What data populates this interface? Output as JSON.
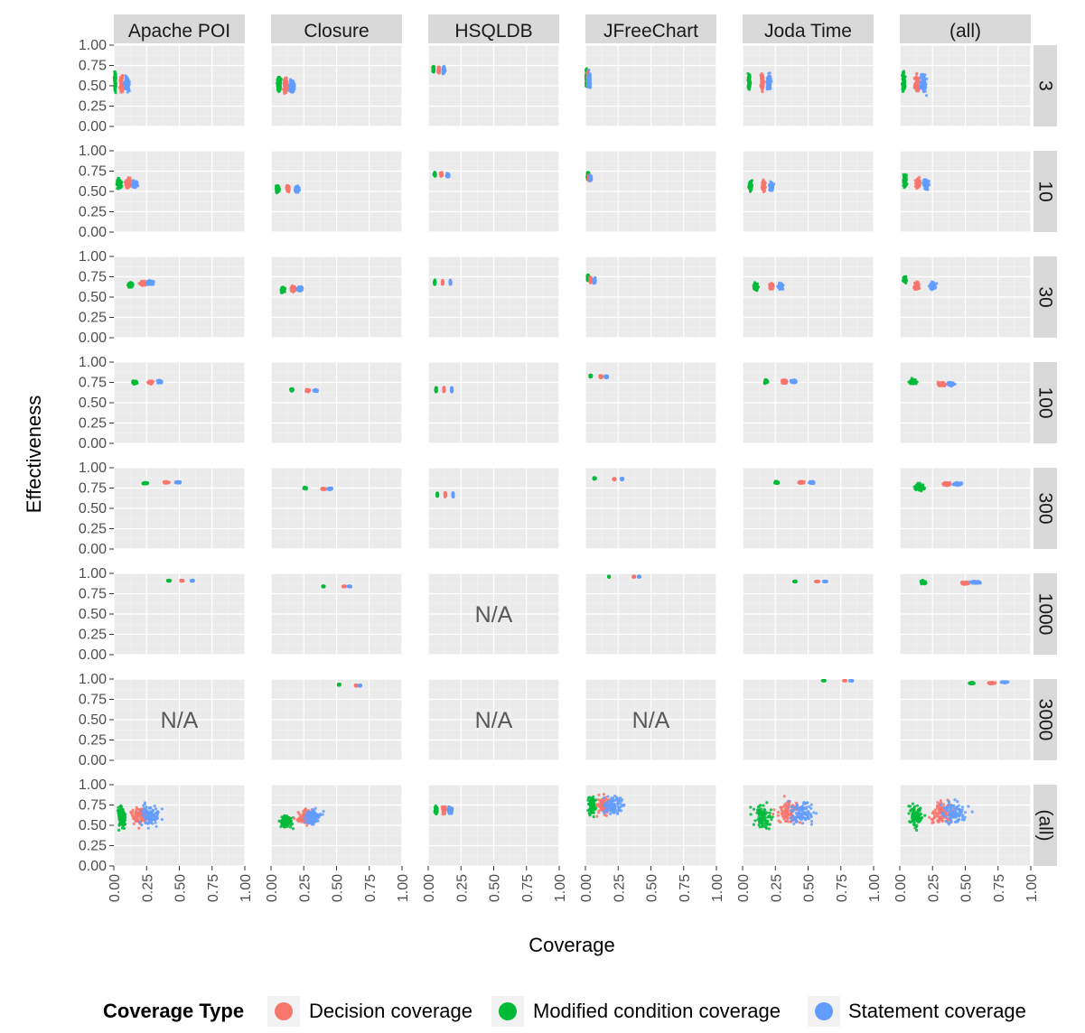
{
  "chart_data": {
    "type": "scatter",
    "layout": "faceted-grid",
    "xlabel": "Coverage",
    "ylabel": "Effectiveness",
    "xlim": [
      0,
      1
    ],
    "ylim": [
      0,
      1
    ],
    "x_ticks": [
      "0.00",
      "0.25",
      "0.50",
      "0.75",
      "1.00"
    ],
    "y_ticks": [
      "0.00",
      "0.25",
      "0.50",
      "0.75",
      "1.00"
    ],
    "x_tick_values": [
      0,
      0.25,
      0.5,
      0.75,
      1
    ],
    "y_tick_values": [
      0,
      0.25,
      0.5,
      0.75,
      1
    ],
    "grid": true,
    "columns": [
      "Apache POI",
      "Closure",
      "HSQLDB",
      "JFreeChart",
      "Joda Time",
      "(all)"
    ],
    "rows": [
      "3",
      "10",
      "30",
      "100",
      "300",
      "1000",
      "3000",
      "(all)"
    ],
    "na_label": "N/A",
    "na_cells": [
      [
        5,
        2
      ],
      [
        6,
        0
      ],
      [
        6,
        2
      ],
      [
        6,
        3
      ]
    ],
    "legend": {
      "title": "Coverage Type",
      "position": "bottom",
      "entries": [
        {
          "name": "Decision coverage",
          "color": "#F8766D"
        },
        {
          "name": "Modified condition coverage",
          "color": "#00BA38"
        },
        {
          "name": "Statement coverage",
          "color": "#619CFF"
        }
      ]
    },
    "series_order": [
      "Modified condition coverage",
      "Decision coverage",
      "Statement coverage"
    ],
    "note": "Each cluster: [x_center, x_spread, y_center, y_spread] in data units; series order = Modified condition, Decision, Statement.",
    "clusters": {
      "0": {
        "0": [
          [
            0.01,
            0.02,
            0.55,
            0.37
          ],
          [
            0.06,
            0.04,
            0.52,
            0.3
          ],
          [
            0.1,
            0.06,
            0.52,
            0.28
          ]
        ],
        "1": [
          [
            0.06,
            0.05,
            0.51,
            0.31
          ],
          [
            0.11,
            0.05,
            0.51,
            0.31
          ],
          [
            0.16,
            0.06,
            0.5,
            0.3
          ]
        ],
        "2": [
          [
            0.04,
            0.02,
            0.7,
            0.14
          ],
          [
            0.08,
            0.02,
            0.7,
            0.12
          ],
          [
            0.12,
            0.03,
            0.69,
            0.12
          ]
        ],
        "3": [
          [
            0.01,
            0.02,
            0.6,
            0.36
          ],
          [
            0.02,
            0.02,
            0.58,
            0.32
          ],
          [
            0.03,
            0.03,
            0.57,
            0.3
          ]
        ],
        "4": [
          [
            0.05,
            0.03,
            0.55,
            0.35
          ],
          [
            0.15,
            0.04,
            0.55,
            0.34
          ],
          [
            0.2,
            0.05,
            0.55,
            0.34
          ]
        ],
        "5": [
          [
            0.03,
            0.04,
            0.55,
            0.38
          ],
          [
            0.13,
            0.06,
            0.53,
            0.34
          ],
          [
            0.18,
            0.07,
            0.53,
            0.34
          ]
        ]
      },
      "1": {
        "0": [
          [
            0.04,
            0.05,
            0.6,
            0.2
          ],
          [
            0.11,
            0.06,
            0.6,
            0.18
          ],
          [
            0.16,
            0.07,
            0.59,
            0.17
          ]
        ],
        "1": [
          [
            0.05,
            0.04,
            0.53,
            0.13
          ],
          [
            0.13,
            0.04,
            0.54,
            0.12
          ],
          [
            0.2,
            0.05,
            0.53,
            0.12
          ]
        ],
        "2": [
          [
            0.05,
            0.02,
            0.71,
            0.07
          ],
          [
            0.1,
            0.02,
            0.71,
            0.07
          ],
          [
            0.15,
            0.03,
            0.7,
            0.07
          ]
        ],
        "3": [
          [
            0.02,
            0.02,
            0.69,
            0.16
          ],
          [
            0.03,
            0.02,
            0.67,
            0.12
          ],
          [
            0.04,
            0.02,
            0.66,
            0.1
          ]
        ],
        "4": [
          [
            0.06,
            0.04,
            0.57,
            0.2
          ],
          [
            0.16,
            0.04,
            0.57,
            0.2
          ],
          [
            0.22,
            0.05,
            0.56,
            0.18
          ]
        ],
        "5": [
          [
            0.04,
            0.04,
            0.63,
            0.24
          ],
          [
            0.14,
            0.06,
            0.6,
            0.2
          ],
          [
            0.2,
            0.07,
            0.59,
            0.2
          ]
        ]
      },
      "2": {
        "0": [
          [
            0.13,
            0.06,
            0.65,
            0.1
          ],
          [
            0.22,
            0.07,
            0.67,
            0.09
          ],
          [
            0.28,
            0.08,
            0.68,
            0.08
          ]
        ],
        "1": [
          [
            0.09,
            0.05,
            0.59,
            0.1
          ],
          [
            0.17,
            0.06,
            0.6,
            0.1
          ],
          [
            0.22,
            0.07,
            0.6,
            0.09
          ]
        ],
        "2": [
          [
            0.05,
            0.01,
            0.68,
            0.08
          ],
          [
            0.11,
            0.01,
            0.68,
            0.08
          ],
          [
            0.17,
            0.01,
            0.68,
            0.08
          ]
        ],
        "3": [
          [
            0.02,
            0.02,
            0.74,
            0.12
          ],
          [
            0.04,
            0.02,
            0.71,
            0.1
          ],
          [
            0.07,
            0.02,
            0.7,
            0.09
          ]
        ],
        "4": [
          [
            0.1,
            0.05,
            0.63,
            0.13
          ],
          [
            0.22,
            0.06,
            0.63,
            0.12
          ],
          [
            0.29,
            0.06,
            0.63,
            0.12
          ]
        ],
        "5": [
          [
            0.04,
            0.04,
            0.72,
            0.14
          ],
          [
            0.13,
            0.06,
            0.64,
            0.14
          ],
          [
            0.25,
            0.08,
            0.64,
            0.14
          ]
        ]
      },
      "3": {
        "0": [
          [
            0.16,
            0.05,
            0.75,
            0.06
          ],
          [
            0.28,
            0.06,
            0.75,
            0.06
          ],
          [
            0.35,
            0.06,
            0.76,
            0.05
          ]
        ],
        "1": [
          [
            0.16,
            0.03,
            0.66,
            0.05
          ],
          [
            0.28,
            0.04,
            0.65,
            0.04
          ],
          [
            0.34,
            0.04,
            0.65,
            0.04
          ]
        ],
        "2": [
          [
            0.06,
            0.01,
            0.66,
            0.08
          ],
          [
            0.12,
            0.01,
            0.66,
            0.08
          ],
          [
            0.18,
            0.01,
            0.66,
            0.08
          ]
        ],
        "3": [
          [
            0.04,
            0.02,
            0.83,
            0.04
          ],
          [
            0.12,
            0.03,
            0.82,
            0.04
          ],
          [
            0.16,
            0.03,
            0.82,
            0.04
          ]
        ],
        "4": [
          [
            0.18,
            0.04,
            0.76,
            0.07
          ],
          [
            0.32,
            0.06,
            0.76,
            0.07
          ],
          [
            0.39,
            0.06,
            0.76,
            0.06
          ]
        ],
        "5": [
          [
            0.1,
            0.08,
            0.76,
            0.1
          ],
          [
            0.32,
            0.1,
            0.73,
            0.08
          ],
          [
            0.39,
            0.08,
            0.73,
            0.07
          ]
        ]
      },
      "4": {
        "0": [
          [
            0.24,
            0.06,
            0.81,
            0.03
          ],
          [
            0.4,
            0.06,
            0.82,
            0.03
          ],
          [
            0.49,
            0.06,
            0.82,
            0.03
          ]
        ],
        "1": [
          [
            0.26,
            0.03,
            0.75,
            0.03
          ],
          [
            0.4,
            0.04,
            0.74,
            0.03
          ],
          [
            0.45,
            0.04,
            0.74,
            0.03
          ]
        ],
        "2": [
          [
            0.07,
            0.01,
            0.67,
            0.08
          ],
          [
            0.13,
            0.01,
            0.67,
            0.08
          ],
          [
            0.19,
            0.01,
            0.67,
            0.08
          ]
        ],
        "3": [
          [
            0.07,
            0.02,
            0.87,
            0.03
          ],
          [
            0.22,
            0.02,
            0.86,
            0.03
          ],
          [
            0.28,
            0.02,
            0.86,
            0.03
          ]
        ],
        "4": [
          [
            0.26,
            0.04,
            0.82,
            0.04
          ],
          [
            0.45,
            0.06,
            0.82,
            0.04
          ],
          [
            0.53,
            0.06,
            0.82,
            0.04
          ]
        ],
        "5": [
          [
            0.15,
            0.1,
            0.76,
            0.14
          ],
          [
            0.36,
            0.1,
            0.8,
            0.06
          ],
          [
            0.44,
            0.1,
            0.8,
            0.05
          ]
        ]
      },
      "5": {
        "0": [
          [
            0.42,
            0.03,
            0.91,
            0.02
          ],
          [
            0.52,
            0.03,
            0.91,
            0.02
          ],
          [
            0.6,
            0.03,
            0.91,
            0.02
          ]
        ],
        "1": [
          [
            0.4,
            0.02,
            0.84,
            0.02
          ],
          [
            0.56,
            0.03,
            0.84,
            0.02
          ],
          [
            0.6,
            0.03,
            0.84,
            0.02
          ]
        ],
        "3": [
          [
            0.18,
            0.01,
            0.96,
            0.02
          ],
          [
            0.37,
            0.02,
            0.96,
            0.02
          ],
          [
            0.41,
            0.02,
            0.96,
            0.02
          ]
        ],
        "4": [
          [
            0.4,
            0.03,
            0.9,
            0.02
          ],
          [
            0.57,
            0.04,
            0.9,
            0.02
          ],
          [
            0.63,
            0.04,
            0.9,
            0.02
          ]
        ],
        "5": [
          [
            0.18,
            0.06,
            0.89,
            0.07
          ],
          [
            0.5,
            0.1,
            0.88,
            0.05
          ],
          [
            0.58,
            0.1,
            0.89,
            0.04
          ]
        ]
      },
      "6": {
        "1": [
          [
            0.52,
            0.02,
            0.93,
            0.02
          ],
          [
            0.65,
            0.02,
            0.92,
            0.02
          ],
          [
            0.68,
            0.02,
            0.92,
            0.02
          ]
        ],
        "4": [
          [
            0.62,
            0.03,
            0.98,
            0.01
          ],
          [
            0.78,
            0.03,
            0.98,
            0.01
          ],
          [
            0.83,
            0.03,
            0.98,
            0.01
          ]
        ],
        "5": [
          [
            0.55,
            0.06,
            0.95,
            0.03
          ],
          [
            0.7,
            0.07,
            0.95,
            0.03
          ],
          [
            0.8,
            0.08,
            0.96,
            0.02
          ]
        ]
      },
      "7": {
        "0": [
          [
            0.06,
            0.1,
            0.6,
            0.42
          ],
          [
            0.2,
            0.2,
            0.62,
            0.4
          ],
          [
            0.28,
            0.25,
            0.62,
            0.4
          ]
        ],
        "1": [
          [
            0.12,
            0.16,
            0.55,
            0.3
          ],
          [
            0.26,
            0.22,
            0.6,
            0.3
          ],
          [
            0.32,
            0.22,
            0.6,
            0.28
          ]
        ],
        "2": [
          [
            0.06,
            0.03,
            0.69,
            0.15
          ],
          [
            0.12,
            0.04,
            0.69,
            0.15
          ],
          [
            0.17,
            0.05,
            0.68,
            0.14
          ]
        ],
        "3": [
          [
            0.05,
            0.1,
            0.75,
            0.4
          ],
          [
            0.14,
            0.2,
            0.75,
            0.38
          ],
          [
            0.22,
            0.25,
            0.75,
            0.36
          ]
        ],
        "4": [
          [
            0.15,
            0.25,
            0.6,
            0.5
          ],
          [
            0.35,
            0.3,
            0.66,
            0.48
          ],
          [
            0.45,
            0.35,
            0.66,
            0.48
          ]
        ],
        "5": [
          [
            0.12,
            0.18,
            0.62,
            0.5
          ],
          [
            0.32,
            0.3,
            0.66,
            0.48
          ],
          [
            0.42,
            0.35,
            0.66,
            0.46
          ]
        ]
      }
    }
  }
}
